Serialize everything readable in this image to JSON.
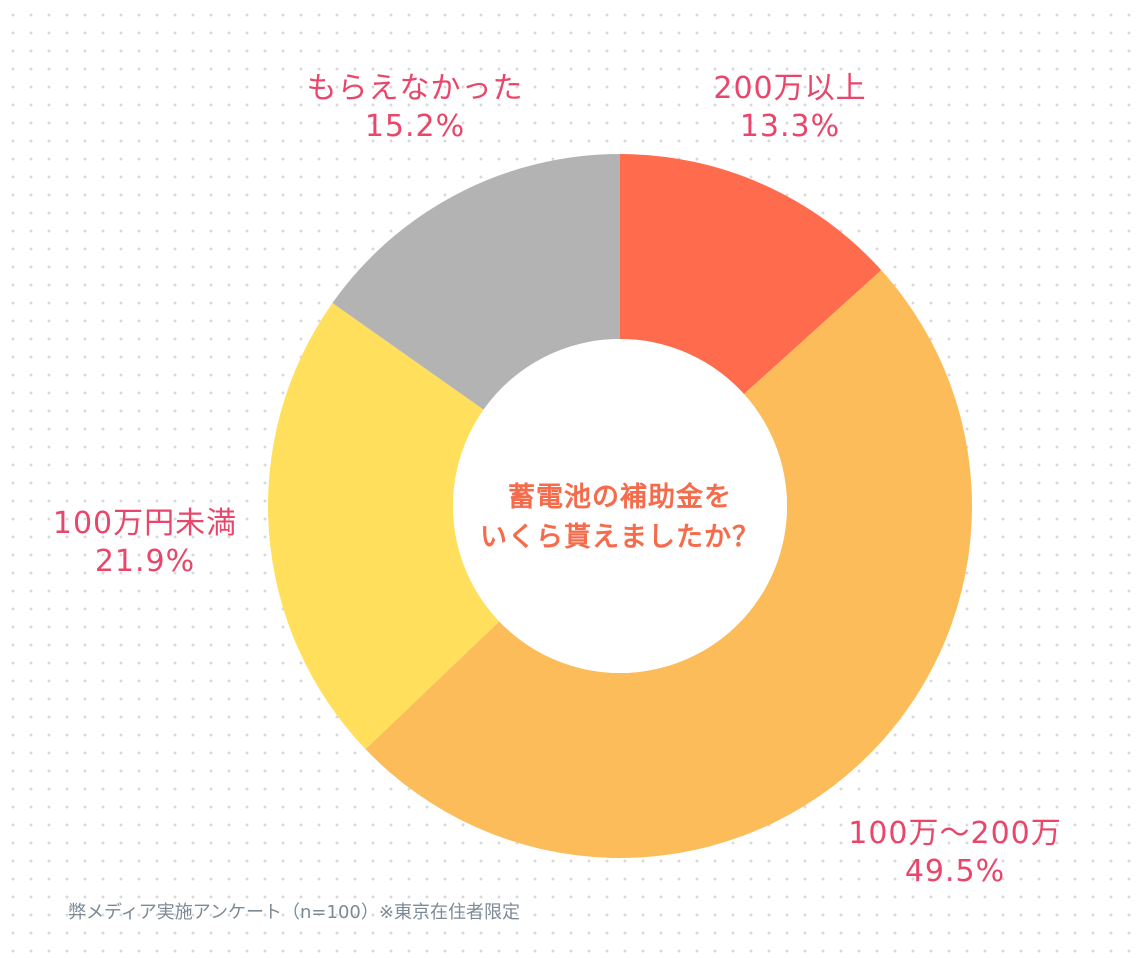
{
  "chart_data": {
    "type": "pie",
    "variant": "donut",
    "center_title": [
      "蓄電池の補助金を",
      "いくら貰えましたか？"
    ],
    "slices": [
      {
        "label": "200万以上",
        "value": 13.3,
        "value_label": "13.3%",
        "color": "#ff6b4d"
      },
      {
        "label": "100万～200万",
        "value": 49.5,
        "value_label": "49.5%",
        "color": "#fcbc59"
      },
      {
        "label": "100万円未満",
        "value": 21.9,
        "value_label": "21.9%",
        "color": "#ffdf5b"
      },
      {
        "label": "もらえなかった",
        "value": 15.2,
        "value_label": "15.2%",
        "color": "#b3b3b3"
      }
    ],
    "source_note": "弊メディア実施アンケート（n=100）※東京在住者限定"
  },
  "colors": {
    "label_text": "#e8466a",
    "center_text": "#f56c4c",
    "note_text": "#7c8a96"
  }
}
